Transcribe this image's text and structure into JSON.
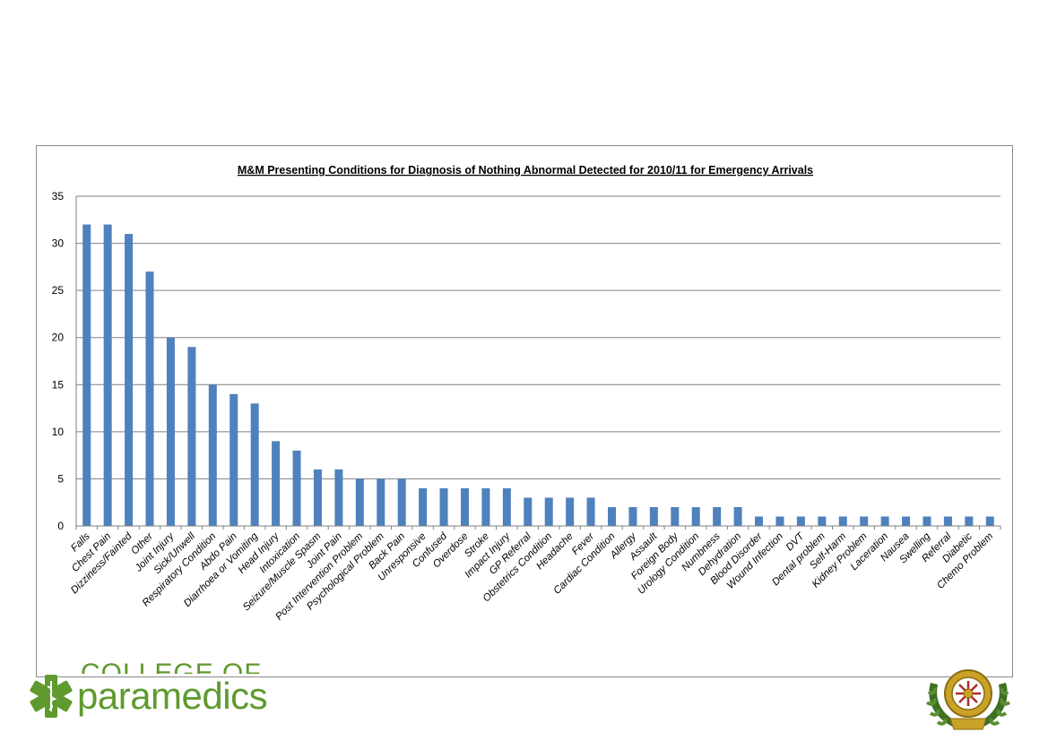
{
  "logo": {
    "top_text": "COLLEGE OF",
    "word": "paramedics"
  },
  "chart_data": {
    "type": "bar",
    "title": "M&M Presenting Conditions for Diagnosis of Nothing Abnormal Detected for 2010/11 for Emergency Arrivals",
    "xlabel": "",
    "ylabel": "",
    "ylim": [
      0,
      35
    ],
    "yticks": [
      0,
      5,
      10,
      15,
      20,
      25,
      30,
      35
    ],
    "grid": true,
    "legend": "none",
    "bar_color": "#4f81bd",
    "categories": [
      "Falls",
      "Chest Pain",
      "Dizziness/Fainted",
      "Other",
      "Joint Injury",
      "Sick/Unwell",
      "Respiratory Condition",
      "Abdo Pain",
      "Diarrhoea or Vomiting",
      "Head Injury",
      "Intoxication",
      "Seizure/Muscle Spasm",
      "Joint Pain",
      "Post Intervention Problem",
      "Psychological Problem",
      "Back Pain",
      "Unresponsive",
      "Confused",
      "Overdose",
      "Stroke",
      "Impact Injury",
      "GP Referral",
      "Obstetrics Condition",
      "Headache",
      "Fever",
      "Cardiac Condition",
      "Allergy",
      "Assault",
      "Foreign Body",
      "Urology Condition",
      "Numbness",
      "Dehydration",
      "Blood Disorder",
      "Wound Infection",
      "DVT",
      "Dental problem",
      "Self-Harm",
      "Kidney Problem",
      "Laceration",
      "Nausea",
      "Swelling",
      "Referral",
      "Diabetic",
      "Chemo Problem"
    ],
    "values": [
      32,
      32,
      31,
      27,
      20,
      19,
      15,
      14,
      13,
      9,
      8,
      6,
      6,
      5,
      5,
      5,
      4,
      4,
      4,
      4,
      4,
      3,
      3,
      3,
      3,
      2,
      2,
      2,
      2,
      2,
      2,
      2,
      1,
      1,
      1,
      1,
      1,
      1,
      1,
      1,
      1,
      1,
      1,
      1
    ]
  }
}
